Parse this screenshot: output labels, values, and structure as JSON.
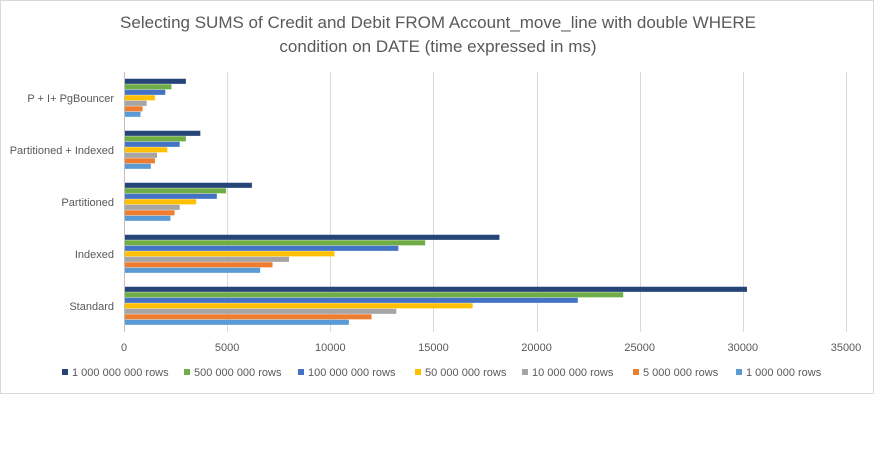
{
  "chart_data": {
    "type": "bar",
    "orientation": "horizontal",
    "title_lines": [
      "Selecting SUMS of Credit and Debit FROM Account_move_line with double WHERE",
      "condition on DATE (time expressed in ms)"
    ],
    "categories": [
      "Standard",
      "Indexed",
      "Partitioned",
      "Partitioned + Indexed",
      "P + I+ PgBouncer"
    ],
    "xlim": [
      0,
      35000
    ],
    "x_ticks": [
      0,
      5000,
      10000,
      15000,
      20000,
      25000,
      30000,
      35000
    ],
    "x_tick_labels": [
      "0",
      "5000",
      "10000",
      "15000",
      "20000",
      "25000",
      "30000",
      "35000"
    ],
    "grid": true,
    "legend_position": "bottom",
    "series": [
      {
        "name": "1 000 000 000 rows",
        "color": "#264478",
        "values": [
          30200,
          18200,
          6200,
          3700,
          3000
        ]
      },
      {
        "name": "500 000 000 rows",
        "color": "#70ad47",
        "values": [
          24200,
          14600,
          4950,
          3000,
          2300
        ]
      },
      {
        "name": "100 000 000 rows",
        "color": "#4472c4",
        "values": [
          22000,
          13300,
          4500,
          2700,
          2000
        ]
      },
      {
        "name": "50 000 000 rows",
        "color": "#ffc000",
        "values": [
          16900,
          10200,
          3500,
          2100,
          1500
        ]
      },
      {
        "name": "10 000 000 rows",
        "color": "#a5a5a5",
        "values": [
          13200,
          8000,
          2700,
          1600,
          1100
        ]
      },
      {
        "name": "5 000 000 rows",
        "color": "#ed7d31",
        "values": [
          12000,
          7200,
          2450,
          1500,
          900
        ]
      },
      {
        "name": "1 000 000 rows",
        "color": "#5b9bd5",
        "values": [
          10900,
          6600,
          2250,
          1300,
          800
        ]
      }
    ]
  }
}
